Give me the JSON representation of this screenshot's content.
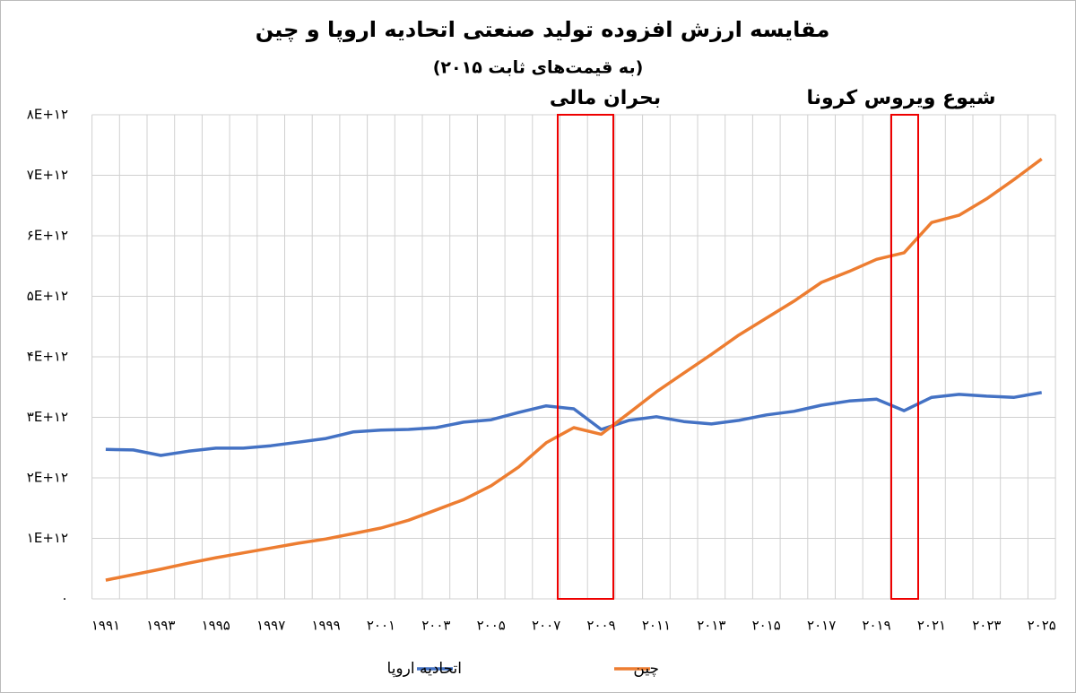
{
  "chart_data": {
    "type": "line",
    "title": "مقایسه ارزش افزوده تولید صنعتی اتحادیه اروپا و چین",
    "subtitle": "(به قیمت‌های ثابت ۲۰۱۵)",
    "annotations": [
      "بحران مالی",
      "شیوع ویروس کرونا"
    ],
    "categories": [
      "۱۹۹۱",
      null,
      "۱۹۹۳",
      null,
      "۱۹۹۵",
      null,
      "۱۹۹۷",
      null,
      "۱۹۹۹",
      null,
      "۲۰۰۱",
      null,
      "۲۰۰۳",
      null,
      "۲۰۰۵",
      null,
      "۲۰۰۷",
      null,
      "۲۰۰۹",
      null,
      "۲۰۱۱",
      null,
      "۲۰۱۳",
      null,
      "۲۰۱۵",
      null,
      "۲۰۱۷",
      null,
      "۲۰۱۹",
      null,
      "۲۰۲۱",
      null,
      "۲۰۲۳",
      null,
      "۲۰۲۵"
    ],
    "series": [
      {
        "name": "اتحادیه اروپا",
        "color": "#4472c4",
        "values": [
          2470000000000,
          2460000000000,
          2370000000000,
          2440000000000,
          2490000000000,
          2490000000000,
          2530000000000,
          2590000000000,
          2650000000000,
          2760000000000,
          2790000000000,
          2800000000000,
          2830000000000,
          2920000000000,
          2960000000000,
          3080000000000,
          3190000000000,
          3140000000000,
          2800000000000,
          2950000000000,
          3010000000000,
          2930000000000,
          2890000000000,
          2950000000000,
          3040000000000,
          3100000000000,
          3200000000000,
          3270000000000,
          3300000000000,
          3110000000000,
          3330000000000,
          3380000000000,
          3350000000000,
          3330000000000,
          3410000000000
        ]
      },
      {
        "name": "چین",
        "color": "#ed7d31",
        "values": [
          310000000000,
          400000000000,
          490000000000,
          590000000000,
          680000000000,
          760000000000,
          840000000000,
          920000000000,
          990000000000,
          1080000000000,
          1170000000000,
          1300000000000,
          1470000000000,
          1640000000000,
          1870000000000,
          2180000000000,
          2580000000000,
          2830000000000,
          2720000000000,
          3070000000000,
          3420000000000,
          3730000000000,
          4040000000000,
          4360000000000,
          4640000000000,
          4920000000000,
          5230000000000,
          5410000000000,
          5610000000000,
          5720000000000,
          6220000000000,
          6340000000000,
          6610000000000,
          6930000000000,
          7270000000000
        ]
      }
    ],
    "ylim": [
      0,
      8000000000000
    ],
    "yticks": [
      {
        "value": 0,
        "label": "۰"
      },
      {
        "value": 1000000000000,
        "label": "۱E+۱۲"
      },
      {
        "value": 2000000000000,
        "label": "۲E+۱۲"
      },
      {
        "value": 3000000000000,
        "label": "۳E+۱۲"
      },
      {
        "value": 4000000000000,
        "label": "۴E+۱۲"
      },
      {
        "value": 5000000000000,
        "label": "۵E+۱۲"
      },
      {
        "value": 6000000000000,
        "label": "۶E+۱۲"
      },
      {
        "value": 7000000000000,
        "label": "۷E+۱۲"
      },
      {
        "value": 8000000000000,
        "label": "۸E+۱۲"
      }
    ],
    "grid": true,
    "legend": "bottom"
  }
}
